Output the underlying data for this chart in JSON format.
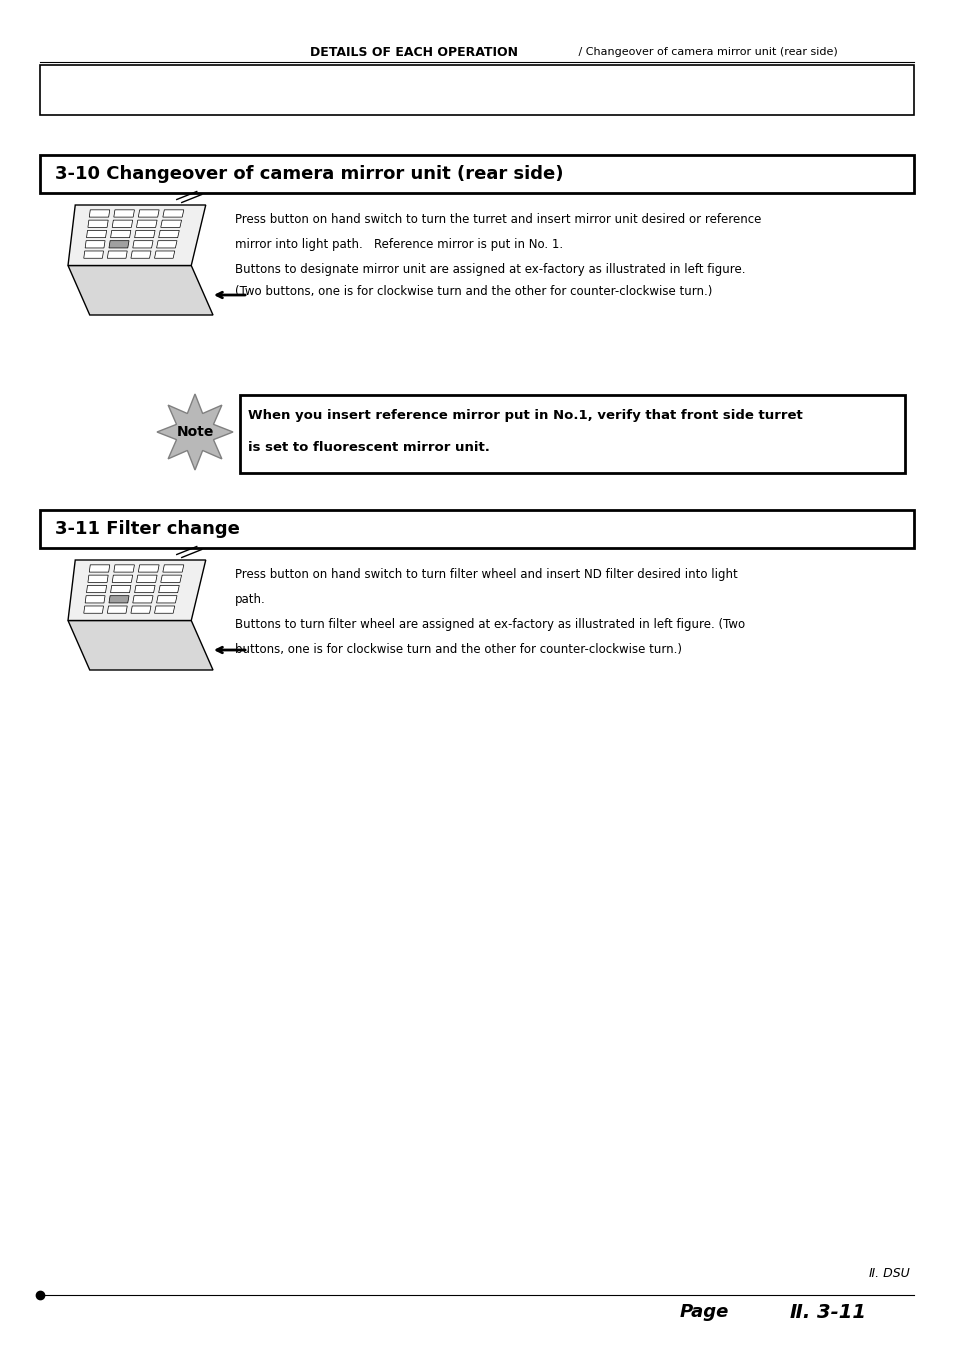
{
  "page_bg": "#ffffff",
  "header_bold": "DETAILS OF EACH OPERATION",
  "header_normal": " / Changeover of camera mirror unit (rear side)",
  "section1_title": "3-10 Changeover of camera mirror unit (rear side)",
  "section1_para1": "Press button on hand switch to turn the turret and insert mirror unit desired or reference",
  "section1_para2": "mirror into light path.   Reference mirror is put in No. 1.",
  "section1_para3": "Buttons to designate mirror unit are assigned at ex-factory as illustrated in left figure.",
  "section1_para4": "(Two buttons, one is for clockwise turn and the other for counter-clockwise turn.)",
  "note_label": "Note",
  "note_line1": "When you insert reference mirror put in No.1, verify that front side turret",
  "note_line2": "is set to fluorescent mirror unit.",
  "section2_title": "3-11 Filter change",
  "section2_para1": "Press button on hand switch to turn filter wheel and insert ND filter desired into light",
  "section2_para2": "path.",
  "section2_para3": "Buttons to turn filter wheel are assigned at ex-factory as illustrated in left figure. (Two",
  "section2_para4": "buttons, one is for clockwise turn and the other for counter-clockwise turn.)",
  "footer_roman_small": "Ⅱ. DSU",
  "footer_page": "Page",
  "footer_pagenum": "Ⅱ. 3-11"
}
